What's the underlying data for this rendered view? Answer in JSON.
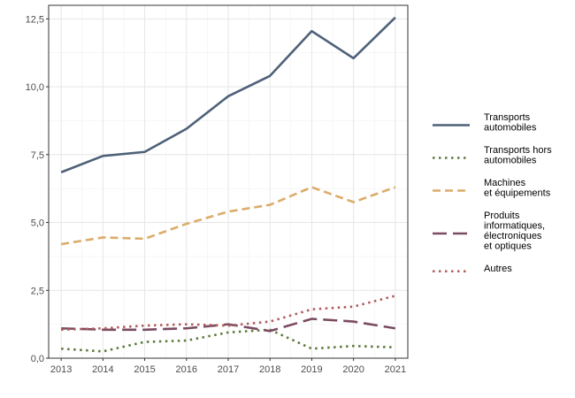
{
  "chart_data": {
    "type": "line",
    "title": "",
    "xlabel": "",
    "ylabel": "",
    "x": [
      2013,
      2014,
      2015,
      2016,
      2017,
      2018,
      2019,
      2020,
      2021
    ],
    "xlim": [
      2012.7,
      2021.3
    ],
    "ylim": [
      0,
      13.0
    ],
    "y_ticks": [
      0,
      2.5,
      5.0,
      7.5,
      10.0,
      12.5
    ],
    "y_tick_labels": [
      "0,0",
      "2,5",
      "5,0",
      "7,5",
      "10,0",
      "12,5"
    ],
    "x_tick_labels": [
      "2013",
      "2014",
      "2015",
      "2016",
      "2017",
      "2018",
      "2019",
      "2020",
      "2021"
    ],
    "grid": true,
    "legend_position": "right",
    "series": [
      {
        "name": "Transports automobiles",
        "name_lines": [
          "Transports",
          "automobiles"
        ],
        "color": "#4e6178",
        "dash": "solid",
        "values": [
          6.85,
          7.45,
          7.6,
          8.45,
          9.65,
          10.4,
          12.05,
          11.05,
          12.55
        ]
      },
      {
        "name": "Transports hors automobiles",
        "name_lines": [
          "Transports hors",
          "automobiles"
        ],
        "color": "#5d7a3e",
        "dash": "dotted",
        "values": [
          0.35,
          0.25,
          0.6,
          0.65,
          0.95,
          1.05,
          0.35,
          0.45,
          0.4
        ]
      },
      {
        "name": "Machines et équipements",
        "name_lines": [
          "Machines",
          "et équipements"
        ],
        "color": "#dbac6a",
        "dash": "dashed",
        "values": [
          4.2,
          4.45,
          4.4,
          4.95,
          5.4,
          5.65,
          6.3,
          5.75,
          6.3
        ]
      },
      {
        "name": "Produits informatiques, électroniques et optiques",
        "name_lines": [
          "Produits",
          "informatiques,",
          "électroniques",
          "et optiques"
        ],
        "color": "#7a4b61",
        "dash": "longdash",
        "values": [
          1.1,
          1.05,
          1.05,
          1.1,
          1.25,
          1.0,
          1.45,
          1.35,
          1.1
        ]
      },
      {
        "name": "Autres",
        "name_lines": [
          "Autres"
        ],
        "color": "#b05c5c",
        "dash": "dotted",
        "values": [
          1.05,
          1.1,
          1.2,
          1.25,
          1.2,
          1.35,
          1.8,
          1.9,
          2.3
        ]
      }
    ]
  }
}
